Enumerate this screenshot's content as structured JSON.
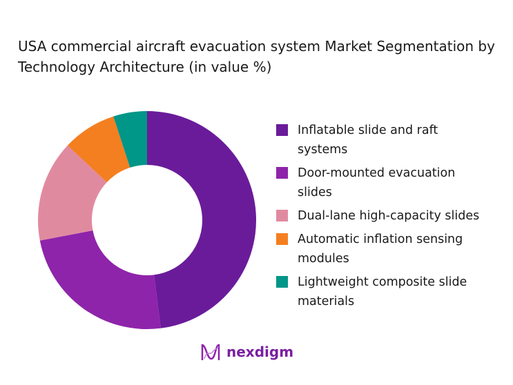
{
  "chart_data": {
    "type": "pie",
    "donut": true,
    "title": "USA commercial aircraft evacuation system Market Segmentation by Technology Architecture (in value %)",
    "categories": [
      "Inflatable slide and raft systems",
      "Door-mounted evacuation slides",
      "Dual-lane high-capacity slides",
      "Automatic inflation sensing modules",
      "Lightweight composite slide materials"
    ],
    "values": [
      48,
      24,
      15,
      8,
      5
    ],
    "colors": [
      "#6a1b9a",
      "#8e24aa",
      "#e08aa0",
      "#f47f20",
      "#009688"
    ],
    "legend_position": "right"
  },
  "brand": {
    "name": "nexdigm"
  }
}
